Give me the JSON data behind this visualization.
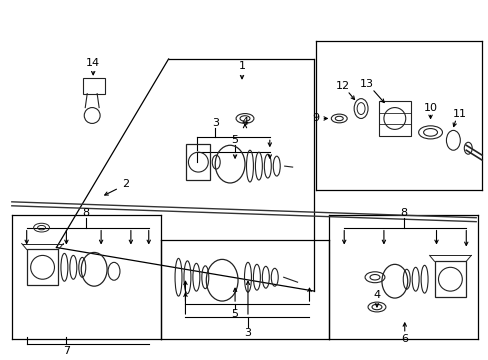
{
  "bg_color": "#ffffff",
  "fig_width": 4.89,
  "fig_height": 3.6,
  "dpi": 100,
  "lc": "#000000",
  "pc": "#222222",
  "gray": "#888888"
}
